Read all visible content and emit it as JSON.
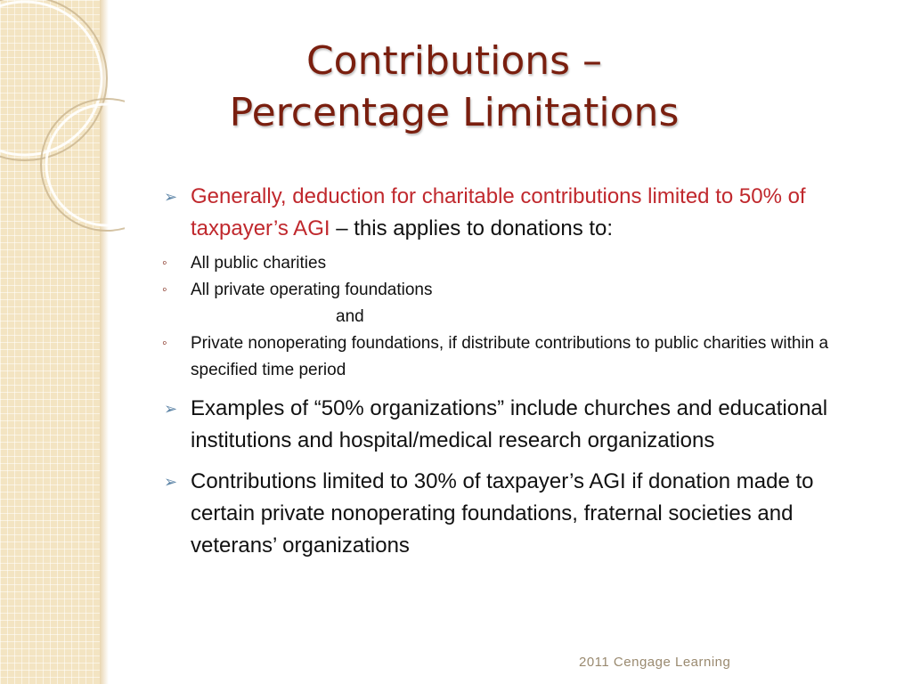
{
  "slide": {
    "title_line1": "Contributions –",
    "title_line2": "Percentage Limitations",
    "bullet1": {
      "red_text": "Generally, deduction for charitable contributions limited to 50% of taxpayer’s AGI",
      "rest_text": " – this applies to donations to:",
      "sub_items": [
        "All public charities",
        "All private operating foundations",
        "Private nonoperating foundations, if distribute contributions to public charities within a specified time period"
      ],
      "connector": "and"
    },
    "bullet2": "Examples of “50% organizations” include churches and educational institutions and hospital/medical research organizations",
    "bullet3": "Contributions limited to 30% of taxpayer’s AGI if donation made to certain private nonoperating foundations, fraternal societies and veterans’ organizations",
    "footer": "2011 Cengage Learning",
    "bullet_icon": "arrowhead-bullet-icon",
    "sub_bullet_icon": "open-circle-bullet-icon",
    "colors": {
      "title": "#7a1f0f",
      "highlight": "#c0282d",
      "bullet": "#5f86a8",
      "sidebar": "#f3e4c2"
    }
  }
}
